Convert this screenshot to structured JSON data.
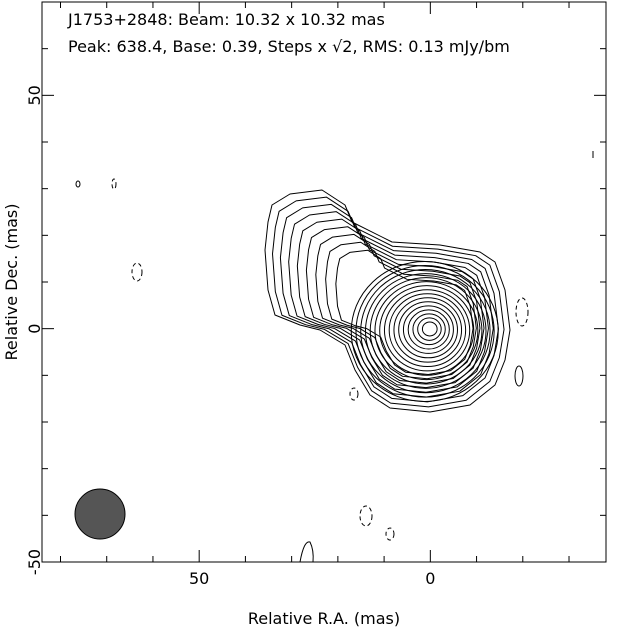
{
  "chart_data": {
    "type": "contour",
    "title": "J1753+2848: Beam: 10.32 x 10.32 mas",
    "subtitle": "Peak: 638.4, Base: 0.39, Steps x √2, RMS: 0.13 mJy/bm",
    "x_label": "Relative R.A. (mas)",
    "y_label": "Relative Dec. (mas)",
    "xlim": [
      84,
      -38
    ],
    "ylim": [
      -50,
      70
    ],
    "xticks": [
      50,
      0
    ],
    "yticks": [
      -50,
      0,
      50
    ],
    "xminorticks": [
      80,
      70,
      60,
      40,
      30,
      20,
      10,
      -10,
      -20,
      -30
    ],
    "yminorticks": [
      -40,
      -30,
      -20,
      -10,
      10,
      20,
      30,
      40,
      60
    ]
  }
}
